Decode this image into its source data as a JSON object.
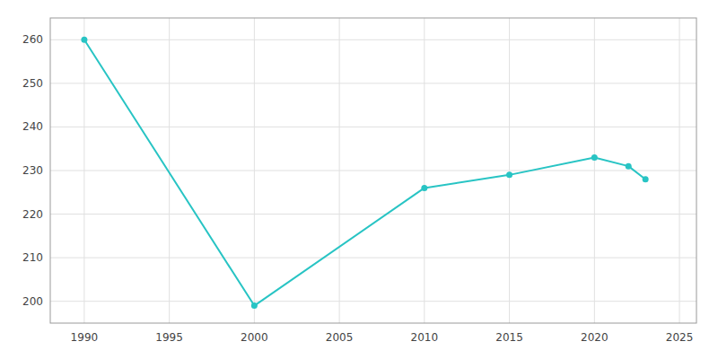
{
  "chart_data": {
    "type": "line",
    "x": [
      1990,
      2000,
      2010,
      2015,
      2020,
      2022,
      2023
    ],
    "values": [
      260,
      199,
      226,
      229,
      233,
      231,
      228
    ],
    "color": "#28c4c4",
    "marker": "circle",
    "xlim": [
      1988,
      2026
    ],
    "ylim": [
      195,
      265
    ],
    "xticks": [
      1990,
      1995,
      2000,
      2005,
      2010,
      2015,
      2020,
      2025
    ],
    "yticks": [
      200,
      210,
      220,
      230,
      240,
      250,
      260
    ],
    "grid": true
  }
}
